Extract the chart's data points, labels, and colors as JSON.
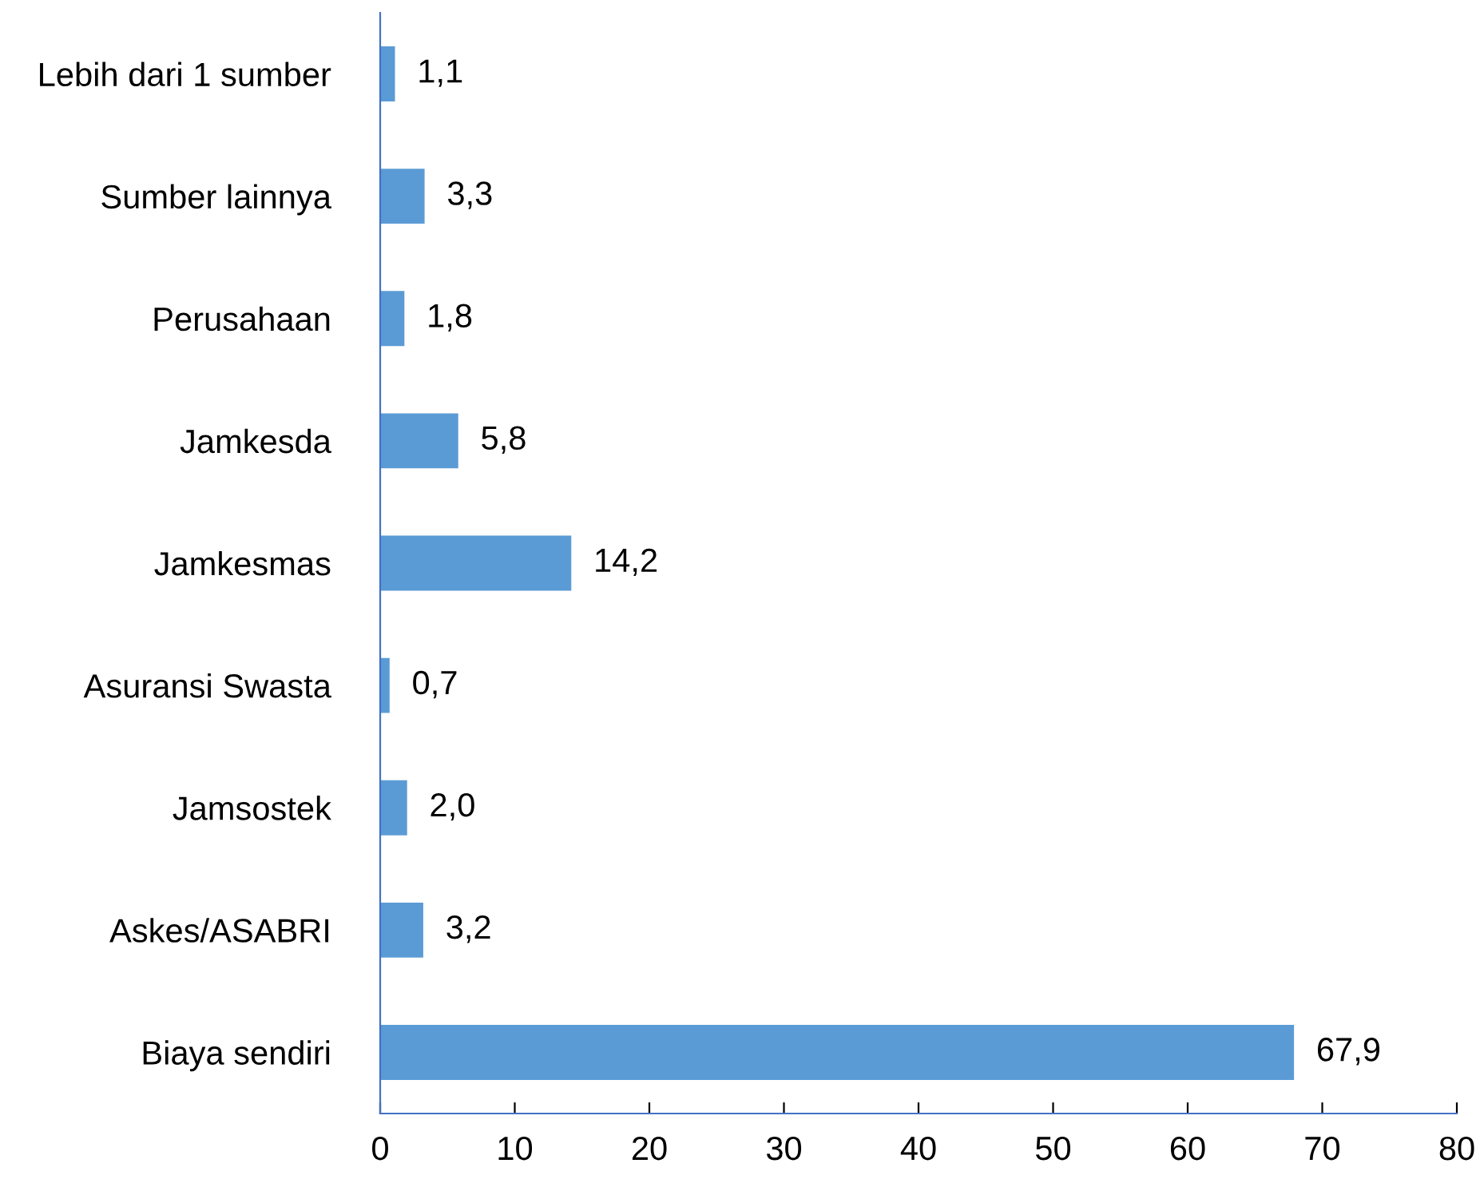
{
  "chart_data": {
    "type": "bar",
    "orientation": "horizontal",
    "categories": [
      "Lebih dari 1 sumber",
      "Sumber lainnya",
      "Perusahaan",
      "Jamkesda",
      "Jamkesmas",
      "Asuransi Swasta",
      "Jamsostek",
      "Askes/ASABRI",
      "Biaya sendiri"
    ],
    "values": [
      1.1,
      3.3,
      1.8,
      5.8,
      14.2,
      0.7,
      2.0,
      3.2,
      67.9
    ],
    "value_labels": [
      "1,1",
      "3,3",
      "1,8",
      "5,8",
      "14,2",
      "0,7",
      "2,0",
      "3,2",
      "67,9"
    ],
    "color": "#5b9bd5",
    "xlim": [
      0,
      80
    ],
    "xticks": [
      0,
      10,
      20,
      30,
      40,
      50,
      60,
      70,
      80
    ],
    "grid": false,
    "legend": false
  }
}
